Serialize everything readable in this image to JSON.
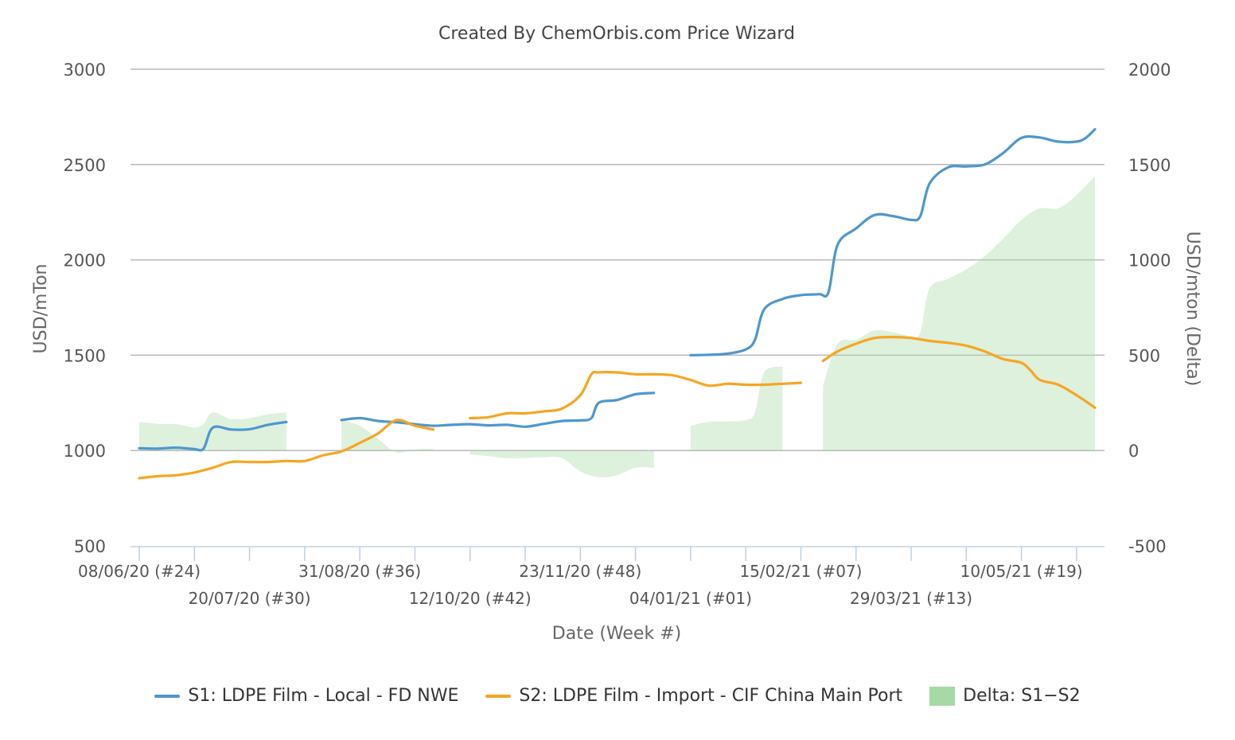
{
  "chart_data": {
    "type": "line",
    "title": "Created By ChemOrbis.com Price Wizard",
    "xlabel": "Date (Week #)",
    "ylabel": "USD/mTon",
    "y2label": "USD/mton (Delta)",
    "ylim": [
      500,
      3000
    ],
    "y_ticks": [
      500,
      1000,
      1500,
      2000,
      2500,
      3000
    ],
    "y2lim": [
      -500,
      2000
    ],
    "y2_ticks": [
      -500,
      0,
      500,
      1000,
      1500,
      2000
    ],
    "x_ticks": [
      {
        "week": 0,
        "label": "08/06/20 (#24)"
      },
      {
        "week": 6,
        "label": "20/07/20 (#30)"
      },
      {
        "week": 12,
        "label": "31/08/20 (#36)"
      },
      {
        "week": 18,
        "label": "12/10/20 (#42)"
      },
      {
        "week": 24,
        "label": "23/11/20 (#48)"
      },
      {
        "week": 30,
        "label": "04/01/21 (#01)"
      },
      {
        "week": 36,
        "label": "15/02/21 (#07)"
      },
      {
        "week": 42,
        "label": "29/03/21 (#13)"
      },
      {
        "week": 48,
        "label": "10/05/21 (#19)"
      }
    ],
    "x_minor_ticks": [
      3,
      9,
      15,
      21,
      27,
      33,
      39,
      45,
      51
    ],
    "series": [
      {
        "name": "S1: LDPE Film - Local - FD NWE",
        "color": "#4e97cd",
        "axis": "left",
        "segments": [
          [
            [
              0,
              1012
            ],
            [
              1,
              1010
            ],
            [
              2,
              1015
            ],
            [
              3,
              1008
            ],
            [
              3.5,
              1010
            ],
            [
              4,
              1120
            ],
            [
              5,
              1110
            ],
            [
              6,
              1112
            ],
            [
              7,
              1135
            ],
            [
              8,
              1150
            ]
          ],
          [
            [
              11,
              1160
            ],
            [
              12,
              1170
            ],
            [
              13,
              1155
            ],
            [
              14,
              1148
            ],
            [
              15,
              1138
            ],
            [
              16,
              1130
            ],
            [
              17,
              1135
            ],
            [
              18,
              1138
            ],
            [
              19,
              1132
            ],
            [
              20,
              1135
            ],
            [
              21,
              1125
            ],
            [
              22,
              1140
            ],
            [
              23,
              1155
            ],
            [
              24,
              1158
            ],
            [
              24.6,
              1170
            ],
            [
              25,
              1250
            ],
            [
              26,
              1265
            ],
            [
              27,
              1295
            ],
            [
              28,
              1302
            ]
          ],
          [
            [
              30,
              1500
            ],
            [
              31,
              1502
            ],
            [
              32,
              1508
            ],
            [
              33,
              1530
            ],
            [
              33.5,
              1580
            ],
            [
              34,
              1740
            ],
            [
              35,
              1795
            ],
            [
              36,
              1815
            ],
            [
              37,
              1820
            ],
            [
              37.5,
              1830
            ],
            [
              38,
              2080
            ],
            [
              39,
              2165
            ],
            [
              40,
              2235
            ],
            [
              41,
              2230
            ],
            [
              42,
              2210
            ],
            [
              42.5,
              2230
            ],
            [
              43,
              2400
            ],
            [
              44,
              2485
            ],
            [
              45,
              2490
            ],
            [
              46,
              2500
            ],
            [
              47,
              2560
            ],
            [
              48,
              2640
            ],
            [
              49,
              2642
            ],
            [
              50,
              2620
            ],
            [
              51,
              2620
            ],
            [
              51.5,
              2640
            ],
            [
              52,
              2685
            ]
          ]
        ]
      },
      {
        "name": "S2: LDPE Film - Import - CIF China Main Port",
        "color": "#f5a623",
        "axis": "left",
        "segments": [
          [
            [
              0,
              855
            ],
            [
              1,
              865
            ],
            [
              2,
              870
            ],
            [
              3,
              885
            ],
            [
              4,
              910
            ],
            [
              5,
              940
            ],
            [
              6,
              940
            ],
            [
              7,
              940
            ],
            [
              8,
              945
            ],
            [
              9,
              945
            ],
            [
              10,
              975
            ],
            [
              11,
              995
            ],
            [
              12,
              1040
            ],
            [
              13,
              1090
            ],
            [
              14,
              1160
            ],
            [
              15,
              1130
            ],
            [
              16,
              1110
            ]
          ],
          [
            [
              18,
              1170
            ],
            [
              19,
              1175
            ],
            [
              20,
              1195
            ],
            [
              21,
              1195
            ],
            [
              22,
              1205
            ],
            [
              23,
              1220
            ],
            [
              24,
              1290
            ],
            [
              24.6,
              1400
            ],
            [
              25,
              1410
            ],
            [
              26,
              1410
            ],
            [
              27,
              1400
            ],
            [
              28,
              1400
            ],
            [
              29,
              1395
            ],
            [
              30,
              1370
            ],
            [
              31,
              1340
            ],
            [
              32,
              1350
            ],
            [
              33,
              1345
            ],
            [
              34,
              1345
            ],
            [
              35,
              1350
            ],
            [
              36,
              1355
            ]
          ],
          [
            [
              37.2,
              1470
            ],
            [
              38,
              1520
            ],
            [
              39,
              1560
            ],
            [
              40,
              1590
            ],
            [
              41,
              1595
            ],
            [
              42,
              1590
            ],
            [
              43,
              1575
            ],
            [
              44,
              1565
            ],
            [
              45,
              1550
            ],
            [
              46,
              1520
            ],
            [
              47,
              1480
            ],
            [
              48,
              1460
            ],
            [
              48.5,
              1420
            ],
            [
              49,
              1370
            ],
            [
              50,
              1345
            ],
            [
              51,
              1290
            ],
            [
              52,
              1225
            ]
          ]
        ]
      }
    ],
    "delta": {
      "name": "Delta: S1−S2",
      "color": "#a5d9a5",
      "axis": "right",
      "segments": [
        [
          [
            0,
            150
          ],
          [
            1,
            140
          ],
          [
            2,
            138
          ],
          [
            3,
            120
          ],
          [
            3.5,
            140
          ],
          [
            4,
            200
          ],
          [
            5,
            165
          ],
          [
            6,
            170
          ],
          [
            7,
            190
          ],
          [
            8,
            200
          ]
        ],
        [
          [
            11,
            160
          ],
          [
            12,
            130
          ],
          [
            13,
            60
          ],
          [
            14,
            -10
          ],
          [
            15,
            5
          ],
          [
            16,
            10
          ]
        ],
        [
          [
            18,
            -20
          ],
          [
            19,
            -30
          ],
          [
            20,
            -40
          ],
          [
            21,
            -40
          ],
          [
            22,
            -35
          ],
          [
            23,
            -40
          ],
          [
            24,
            -110
          ],
          [
            25,
            -140
          ],
          [
            26,
            -130
          ],
          [
            27,
            -90
          ],
          [
            28,
            -90
          ]
        ],
        [
          [
            30,
            130
          ],
          [
            31,
            150
          ],
          [
            32,
            152
          ],
          [
            33,
            160
          ],
          [
            33.5,
            200
          ],
          [
            34,
            410
          ],
          [
            35,
            440
          ]
        ],
        [
          [
            37.2,
            340
          ],
          [
            38,
            560
          ],
          [
            39,
            580
          ],
          [
            40,
            630
          ],
          [
            41,
            620
          ],
          [
            42,
            600
          ],
          [
            42.5,
            620
          ],
          [
            43,
            850
          ],
          [
            44,
            900
          ],
          [
            45,
            950
          ],
          [
            46,
            1020
          ],
          [
            47,
            1110
          ],
          [
            48,
            1210
          ],
          [
            49,
            1270
          ],
          [
            50,
            1270
          ],
          [
            51,
            1340
          ],
          [
            52,
            1440
          ]
        ]
      ]
    }
  }
}
